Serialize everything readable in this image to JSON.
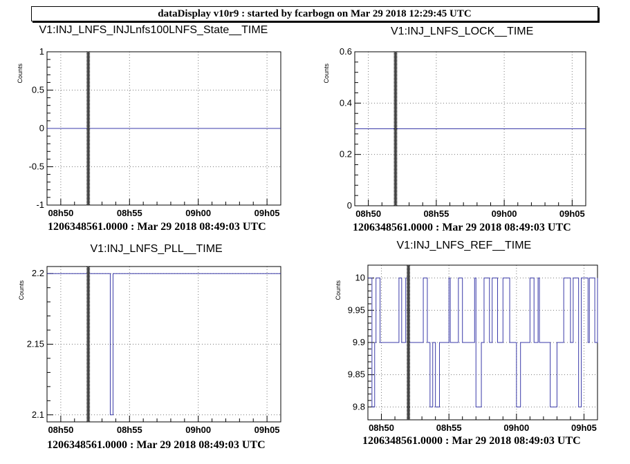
{
  "header": {
    "title": "dataDisplay v10r9 : started by fcarbogn on Mar 29 2018 12:29:45 UTC"
  },
  "chart_data": [
    {
      "type": "line",
      "title": "V1:INJ_LNFS_INJLnfs100LNFS_State__TIME",
      "ylabel": "Counts",
      "footer": "1206348561.0000 : Mar 29 2018 08:49:03 UTC",
      "xlim": [
        "08h49",
        "09h06"
      ],
      "ylim": [
        -1,
        1
      ],
      "yticks": [
        -1,
        -0.5,
        0,
        0.5,
        1
      ],
      "yticklabels": [
        "-1",
        "-0.5",
        "0",
        "0.5",
        "1"
      ],
      "xticks": [
        "08h50",
        "08h55",
        "09h00",
        "09h05"
      ],
      "marker_time": "08h52",
      "grid": true,
      "series": [
        {
          "x": [
            "08h49",
            "09h06"
          ],
          "y": [
            0,
            0
          ],
          "step": true
        }
      ]
    },
    {
      "type": "line",
      "title": "V1:INJ_LNFS_LOCK__TIME",
      "ylabel": "Counts",
      "footer": "1206348561.0000 : Mar 29 2018 08:49:03 UTC",
      "xlim": [
        "08h49",
        "09h06"
      ],
      "ylim": [
        0,
        0.6
      ],
      "yticks": [
        0,
        0.2,
        0.4,
        0.6
      ],
      "yticklabels": [
        "0",
        "0.2",
        "0.4",
        "0.6"
      ],
      "xticks": [
        "08h50",
        "08h55",
        "09h00",
        "09h05"
      ],
      "marker_time": "08h52",
      "grid": true,
      "series": [
        {
          "x": [
            "08h49",
            "09h06"
          ],
          "y": [
            0.3,
            0.3
          ],
          "step": true
        }
      ]
    },
    {
      "type": "line",
      "title": "V1:INJ_LNFS_PLL__TIME",
      "ylabel": "Counts",
      "footer": "1206348561.0000 : Mar 29 2018 08:49:03 UTC",
      "xlim": [
        "08h49",
        "09h06"
      ],
      "ylim": [
        2.095,
        2.205
      ],
      "yticks": [
        2.1,
        2.15,
        2.2
      ],
      "yticklabels": [
        "2.1",
        "2.15",
        "2.2"
      ],
      "xticks": [
        "08h50",
        "08h55",
        "09h00",
        "09h05"
      ],
      "marker_time": "08h52",
      "grid": true,
      "series": [
        {
          "x": [
            "08h49",
            "08h53.6",
            "08h53.8",
            "09h06"
          ],
          "y": [
            2.2,
            2.1,
            2.2,
            2.2
          ],
          "step": true
        }
      ]
    },
    {
      "type": "line",
      "title": "V1:INJ_LNFS_REF__TIME",
      "ylabel": "Counts",
      "footer": "1206348561.0000 : Mar 29 2018 08:49:03 UTC",
      "xlim": [
        "08h49",
        "09h06"
      ],
      "ylim": [
        9.78,
        10.02
      ],
      "yticks": [
        9.8,
        9.85,
        9.9,
        9.95,
        10
      ],
      "yticklabels": [
        "9.8",
        "9.85",
        "9.9",
        "9.95",
        "10"
      ],
      "xticks": [
        "08h50",
        "08h55",
        "09h00",
        "09h05"
      ],
      "marker_time": "08h52",
      "grid": true,
      "series": [
        {
          "x": [
            "08h49",
            "08h49.3",
            "08h49.5",
            "08h49.6",
            "08h49.9",
            "08h51.3",
            "08h51.5",
            "08h51.8",
            "08h52",
            "08h53.1",
            "08h53.4",
            "08h53.6",
            "08h53.8",
            "08h54",
            "08h54.3",
            "08h54.6",
            "08h55",
            "08h55.1",
            "08h55.7",
            "08h56",
            "08h56.9",
            "08h57",
            "08h57.4",
            "08h57.6",
            "08h58",
            "08h58.2",
            "08h58.6",
            "08h59",
            "08h59.5",
            "09h00",
            "09h00.3",
            "09h01",
            "09h01.3",
            "09h01.6",
            "09h01.7",
            "09h02",
            "09h02.5",
            "09h03",
            "09h03.5",
            "09h04",
            "09h04.2",
            "09h04.6",
            "09h04.8",
            "09h05.3",
            "09h05.4",
            "09h05.8",
            "09h06"
          ],
          "y": [
            10,
            9.8,
            9.9,
            10,
            9.9,
            10,
            9.9,
            10,
            9.9,
            10,
            9.9,
            9.8,
            9.9,
            9.8,
            9.9,
            9.9,
            10,
            9.9,
            10,
            9.9,
            10,
            9.8,
            9.9,
            10,
            9.9,
            10,
            9.9,
            10,
            9.9,
            9.8,
            9.9,
            10,
            9.9,
            10,
            9.9,
            9.9,
            9.8,
            9.9,
            10,
            9.9,
            10,
            9.8,
            10,
            9.9,
            10,
            9.9,
            10
          ],
          "step": true
        }
      ]
    }
  ]
}
